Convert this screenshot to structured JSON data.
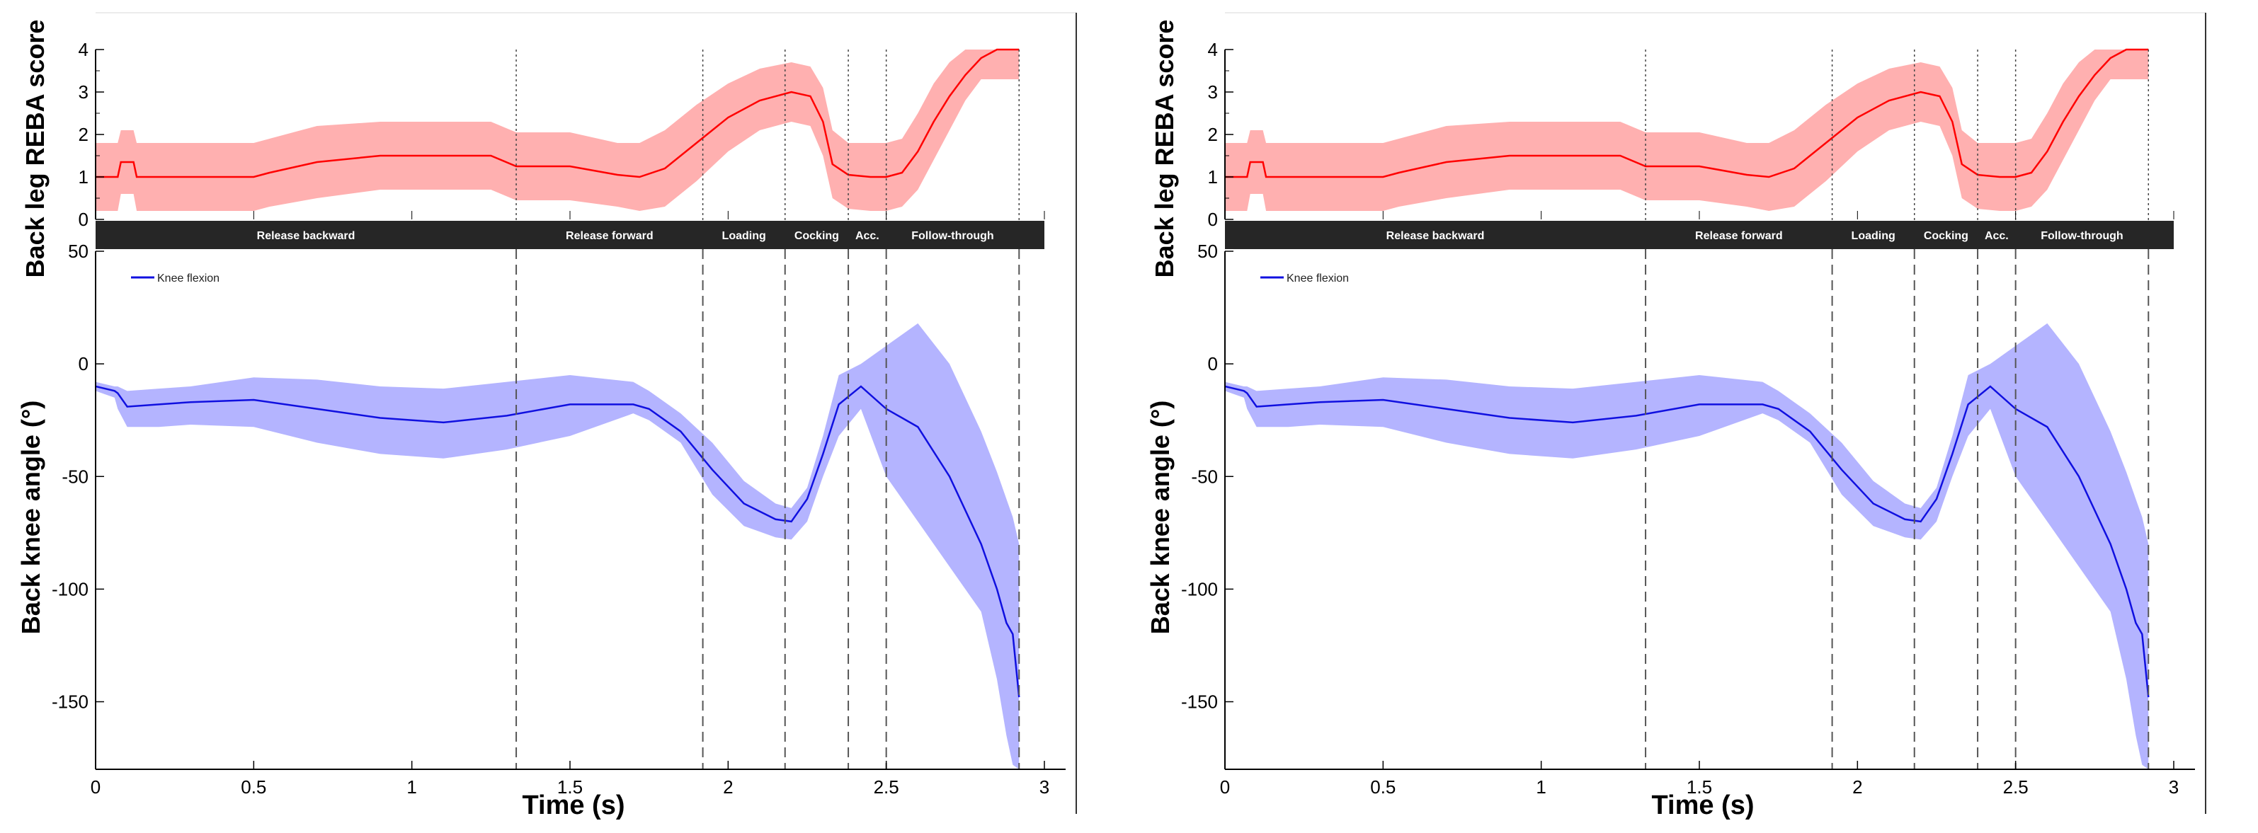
{
  "chart_data": [
    {
      "type": "line",
      "panel": "left",
      "time_axis": {
        "label": "Time (s)",
        "range": [
          0,
          3
        ],
        "ticks": [
          0,
          0.5,
          1,
          1.5,
          2,
          2.5,
          3
        ],
        "tick_labels": [
          "0",
          "0.5",
          "1",
          "1.5",
          "2",
          "2.5",
          "3"
        ]
      },
      "phase_boundaries_s": [
        1.33,
        1.92,
        2.18,
        2.38,
        2.5,
        2.92
      ],
      "phases": [
        {
          "label": "Release backward",
          "start": 0,
          "end": 1.33
        },
        {
          "label": "Release forward",
          "start": 1.33,
          "end": 1.92
        },
        {
          "label": "Loading",
          "start": 1.92,
          "end": 2.18
        },
        {
          "label": "Cocking",
          "start": 2.18,
          "end": 2.38
        },
        {
          "label": "Acc.",
          "start": 2.38,
          "end": 2.5
        },
        {
          "label": "Follow-through",
          "start": 2.5,
          "end": 2.92
        }
      ],
      "top_plot": {
        "ylabel": "Back leg REBA score",
        "ylim": [
          0,
          4
        ],
        "ticks": [
          0,
          1,
          2,
          3,
          4
        ],
        "tick_labels": [
          "0",
          "1",
          "2",
          "3",
          "4"
        ],
        "color": "#ff0000",
        "band_color": "#ffb0b0",
        "series": {
          "t": [
            0,
            0.07,
            0.08,
            0.12,
            0.13,
            0.5,
            0.55,
            0.7,
            0.9,
            1.1,
            1.25,
            1.33,
            1.5,
            1.65,
            1.72,
            1.8,
            1.9,
            2.0,
            2.1,
            2.2,
            2.26,
            2.3,
            2.33,
            2.38,
            2.45,
            2.5,
            2.55,
            2.6,
            2.65,
            2.7,
            2.75,
            2.8,
            2.85,
            2.92
          ],
          "mean": [
            1,
            1,
            1.35,
            1.35,
            1,
            1,
            1.1,
            1.35,
            1.5,
            1.5,
            1.5,
            1.25,
            1.25,
            1.05,
            1.0,
            1.2,
            1.8,
            2.4,
            2.8,
            3.0,
            2.9,
            2.3,
            1.3,
            1.05,
            1.0,
            1.0,
            1.1,
            1.6,
            2.3,
            2.9,
            3.4,
            3.8,
            4.0,
            4.0
          ],
          "upper": [
            1.8,
            1.8,
            2.1,
            2.1,
            1.8,
            1.8,
            1.9,
            2.2,
            2.3,
            2.3,
            2.3,
            2.05,
            2.05,
            1.8,
            1.8,
            2.1,
            2.7,
            3.2,
            3.55,
            3.7,
            3.6,
            3.1,
            2.1,
            1.8,
            1.8,
            1.8,
            1.9,
            2.5,
            3.2,
            3.7,
            4.0,
            4.0,
            4.0,
            4.0
          ],
          "lower": [
            0.2,
            0.2,
            0.6,
            0.6,
            0.2,
            0.2,
            0.3,
            0.5,
            0.7,
            0.7,
            0.7,
            0.45,
            0.45,
            0.3,
            0.2,
            0.3,
            0.9,
            1.6,
            2.1,
            2.3,
            2.2,
            1.5,
            0.5,
            0.25,
            0.2,
            0.2,
            0.3,
            0.7,
            1.4,
            2.1,
            2.8,
            3.3,
            3.3,
            3.3
          ]
        }
      },
      "bottom_plot": {
        "ylabel": "Back knee angle    (°)",
        "ylim": [
          -180,
          50
        ],
        "ticks": [
          50,
          0,
          -50,
          -100,
          -150
        ],
        "tick_labels": [
          "50",
          "0",
          "-50",
          "-100",
          "-150"
        ],
        "legend": "Knee flexion",
        "legend_position": "top-left",
        "color": "#1010e0",
        "band_color": "#b4b4ff",
        "series": {
          "t": [
            0,
            0.06,
            0.07,
            0.1,
            0.2,
            0.3,
            0.5,
            0.7,
            0.9,
            1.1,
            1.3,
            1.5,
            1.7,
            1.75,
            1.85,
            1.95,
            2.05,
            2.15,
            2.2,
            2.25,
            2.3,
            2.35,
            2.42,
            2.5,
            2.6,
            2.7,
            2.8,
            2.85,
            2.88,
            2.9,
            2.92
          ],
          "mean": [
            -10,
            -12,
            -13,
            -19,
            -18,
            -17,
            -16,
            -20,
            -24,
            -26,
            -23,
            -18,
            -18,
            -20,
            -30,
            -47,
            -62,
            -69,
            -70,
            -60,
            -40,
            -18,
            -10,
            -20,
            -28,
            -50,
            -80,
            -100,
            -115,
            -120,
            -148
          ],
          "upper": [
            -8,
            -10,
            -10,
            -12,
            -11,
            -10,
            -6,
            -7,
            -10,
            -11,
            -8,
            -5,
            -8,
            -12,
            -22,
            -35,
            -52,
            -62,
            -64,
            -55,
            -32,
            -5,
            0,
            8,
            18,
            0,
            -30,
            -48,
            -60,
            -68,
            -80
          ],
          "lower": [
            -12,
            -15,
            -20,
            -28,
            -28,
            -27,
            -28,
            -35,
            -40,
            -42,
            -38,
            -32,
            -22,
            -25,
            -35,
            -58,
            -72,
            -77,
            -78,
            -70,
            -50,
            -32,
            -20,
            -50,
            -70,
            -90,
            -110,
            -140,
            -165,
            -178,
            -180
          ]
        }
      }
    },
    {
      "type": "line",
      "panel": "right",
      "same_as": "left",
      "time_axis": {
        "label": "Time (s)",
        "range": [
          0,
          3
        ]
      },
      "top_plot": {
        "ylabel": "Back leg REBA score"
      },
      "bottom_plot": {
        "ylabel": "Back knee angle    (°)",
        "legend": "Knee flexion"
      }
    }
  ]
}
